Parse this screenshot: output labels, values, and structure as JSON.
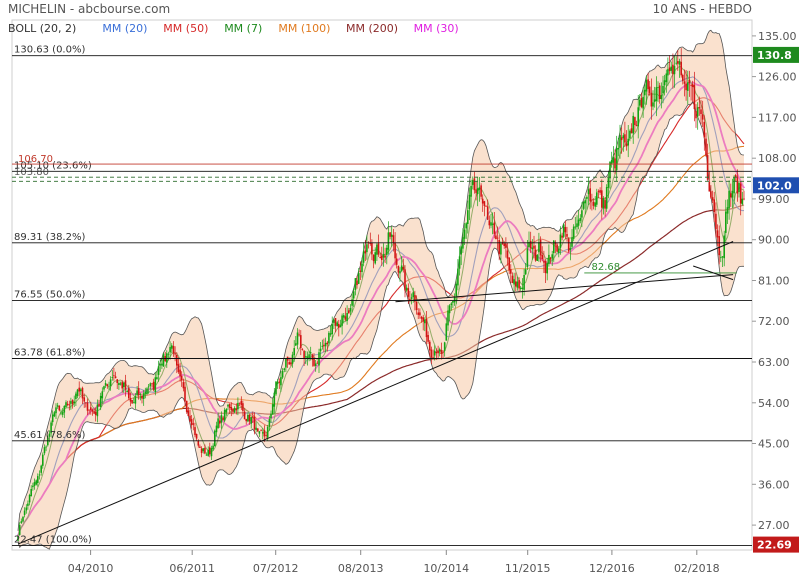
{
  "header": {
    "title": "MICHELIN - abcbourse.com",
    "period": "10 ANS - HEBDO",
    "legend": [
      {
        "label": "BOLL (20, 2)",
        "color": "#333333"
      },
      {
        "label": "MM (20)",
        "color": "#3a6fd8"
      },
      {
        "label": "MM (50)",
        "color": "#d62a2a"
      },
      {
        "label": "MM (7)",
        "color": "#1e8a1e"
      },
      {
        "label": "MM (100)",
        "color": "#e07a1f"
      },
      {
        "label": "MM (200)",
        "color": "#8b2a2a"
      },
      {
        "label": "MM (30)",
        "color": "#e020e0"
      }
    ]
  },
  "chart_data": {
    "type": "candlestick",
    "y_axis": {
      "ticks": [
        27.0,
        36.0,
        45.0,
        54.0,
        63.0,
        72.0,
        81.0,
        90.0,
        99.0,
        108.0,
        117.0,
        126.0,
        135.0
      ],
      "ylim": [
        21.5,
        138.5
      ]
    },
    "x_axis": {
      "ticks": [
        {
          "label": "04/2010",
          "t": 0.1
        },
        {
          "label": "06/2011",
          "t": 0.24
        },
        {
          "label": "07/2012",
          "t": 0.355
        },
        {
          "label": "08/2013",
          "t": 0.472
        },
        {
          "label": "10/2014",
          "t": 0.59
        },
        {
          "label": "11/2015",
          "t": 0.702
        },
        {
          "label": "12/2016",
          "t": 0.818
        },
        {
          "label": "02/2018",
          "t": 0.935
        }
      ]
    },
    "fibonacci": [
      {
        "label": "130.63  (0.0%)",
        "value": 130.63
      },
      {
        "label": "105.10  (23.6%)",
        "value": 105.1
      },
      {
        "label": "89.31  (38.2%)",
        "value": 89.31
      },
      {
        "label": "76.55  (50.0%)",
        "value": 76.55
      },
      {
        "label": "63.78  (61.8%)",
        "value": 63.78
      },
      {
        "label": "45.61  (78.6%)",
        "value": 45.61
      },
      {
        "label": "22.47  (100.0%)",
        "value": 22.47
      }
    ],
    "resistance": {
      "label": "106.70",
      "value": 106.7,
      "color": "#c0392b"
    },
    "dashed_levels": [
      {
        "label": "103.80",
        "value": 103.8
      },
      {
        "value": 102.9
      }
    ],
    "support_label": {
      "label": "82.68",
      "value": 82.68,
      "color": "#2e8b2e"
    },
    "price_badges": [
      {
        "label": "130.8",
        "value": 130.8,
        "color": "#1e8a1e"
      },
      {
        "label": "102.0",
        "value": 102.0,
        "color": "#1f4fb0"
      },
      {
        "label": "22.69",
        "value": 22.69,
        "color": "#c21a1a"
      }
    ],
    "trendlines": [
      {
        "from": [
          0.0,
          22.8
        ],
        "to": [
          0.985,
          89.6
        ]
      },
      {
        "from": [
          0.52,
          76.3
        ],
        "to": [
          0.985,
          82.3
        ]
      },
      {
        "from": [
          0.93,
          84.2
        ],
        "to": [
          0.985,
          81.2
        ]
      }
    ],
    "price_path": [
      [
        0.0,
        25
      ],
      [
        0.03,
        40
      ],
      [
        0.05,
        51
      ],
      [
        0.08,
        56
      ],
      [
        0.1,
        52
      ],
      [
        0.12,
        57
      ],
      [
        0.14,
        60
      ],
      [
        0.16,
        53
      ],
      [
        0.18,
        58
      ],
      [
        0.2,
        63
      ],
      [
        0.215,
        66
      ],
      [
        0.23,
        55
      ],
      [
        0.245,
        45
      ],
      [
        0.26,
        43
      ],
      [
        0.28,
        50
      ],
      [
        0.3,
        55
      ],
      [
        0.32,
        49
      ],
      [
        0.34,
        47
      ],
      [
        0.355,
        56
      ],
      [
        0.37,
        63
      ],
      [
        0.385,
        68
      ],
      [
        0.4,
        62
      ],
      [
        0.42,
        67
      ],
      [
        0.44,
        71
      ],
      [
        0.455,
        75
      ],
      [
        0.47,
        81
      ],
      [
        0.485,
        91
      ],
      [
        0.5,
        87
      ],
      [
        0.515,
        88
      ],
      [
        0.53,
        83
      ],
      [
        0.545,
        76
      ],
      [
        0.56,
        70
      ],
      [
        0.575,
        66
      ],
      [
        0.585,
        64
      ],
      [
        0.6,
        78
      ],
      [
        0.615,
        94
      ],
      [
        0.63,
        100
      ],
      [
        0.645,
        98
      ],
      [
        0.66,
        89
      ],
      [
        0.675,
        84
      ],
      [
        0.69,
        80
      ],
      [
        0.705,
        86
      ],
      [
        0.72,
        88
      ],
      [
        0.735,
        86
      ],
      [
        0.75,
        90
      ],
      [
        0.765,
        92
      ],
      [
        0.78,
        97
      ],
      [
        0.795,
        100
      ],
      [
        0.81,
        101
      ],
      [
        0.825,
        108
      ],
      [
        0.84,
        114
      ],
      [
        0.855,
        118
      ],
      [
        0.87,
        122
      ],
      [
        0.885,
        126
      ],
      [
        0.9,
        126
      ],
      [
        0.915,
        128
      ],
      [
        0.93,
        121
      ],
      [
        0.945,
        112
      ],
      [
        0.955,
        102
      ],
      [
        0.965,
        90
      ],
      [
        0.972,
        86
      ],
      [
        0.978,
        98
      ],
      [
        0.985,
        102
      ]
    ]
  }
}
